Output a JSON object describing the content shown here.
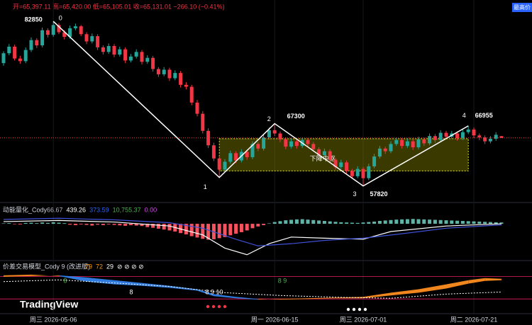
{
  "header": {
    "ohlc_text": "开=65,397.11 高=65,420.00 低=65,105.01 收=65,131.01 −266.10 (−0.41%)",
    "badge": "最高价"
  },
  "watermark": "TradingView",
  "chart_data": [
    {
      "type": "candlestick",
      "up_color": "#26a69a",
      "down_color": "#f23645",
      "ylim": [
        55300,
        86100
      ],
      "xticks": [
        {
          "value": 9,
          "label": "周三 2026-05-06"
        },
        {
          "value": 49,
          "label": "周一 2026-06-15"
        },
        {
          "value": 65,
          "label": "周三 2026-07-01"
        },
        {
          "value": 85,
          "label": "周二 2026-07-21"
        }
      ],
      "ohlc": [
        [
          76500,
          78300,
          76100,
          78000
        ],
        [
          78000,
          79400,
          77700,
          79000
        ],
        [
          79000,
          79300,
          76900,
          77200
        ],
        [
          77200,
          77600,
          76400,
          76800
        ],
        [
          76800,
          78900,
          76500,
          78500
        ],
        [
          78500,
          80400,
          78200,
          80000
        ],
        [
          80000,
          80300,
          78800,
          79200
        ],
        [
          79200,
          81900,
          78900,
          81500
        ],
        [
          81500,
          81800,
          80400,
          80800
        ],
        [
          80800,
          82850,
          80500,
          82300
        ],
        [
          82300,
          82600,
          80900,
          81200
        ],
        [
          81200,
          81500,
          80100,
          80500
        ],
        [
          80500,
          82200,
          80200,
          81800
        ],
        [
          81800,
          82500,
          81500,
          82100
        ],
        [
          82100,
          82300,
          80600,
          80900
        ],
        [
          80900,
          81200,
          79400,
          79800
        ],
        [
          79800,
          81000,
          79500,
          80600
        ],
        [
          80600,
          80900,
          78500,
          78900
        ],
        [
          78900,
          79200,
          77800,
          78200
        ],
        [
          78200,
          79500,
          77900,
          79100
        ],
        [
          79100,
          79400,
          77400,
          77800
        ],
        [
          77800,
          79000,
          77500,
          78600
        ],
        [
          78600,
          78900,
          76500,
          76900
        ],
        [
          76900,
          77900,
          76600,
          77500
        ],
        [
          77500,
          78600,
          77200,
          78200
        ],
        [
          78200,
          78500,
          76300,
          76700
        ],
        [
          76700,
          77700,
          76400,
          77300
        ],
        [
          77300,
          77600,
          75200,
          75600
        ],
        [
          75600,
          75900,
          74400,
          74800
        ],
        [
          74800,
          75900,
          74500,
          75500
        ],
        [
          75500,
          75800,
          73800,
          74200
        ],
        [
          74200,
          75400,
          73900,
          75000
        ],
        [
          75000,
          75300,
          72800,
          73200
        ],
        [
          73200,
          73600,
          72500,
          72900
        ],
        [
          72900,
          73200,
          70100,
          70500
        ],
        [
          70500,
          70900,
          68400,
          68800
        ],
        [
          68800,
          69200,
          65800,
          66200
        ],
        [
          66200,
          66600,
          63600,
          64000
        ],
        [
          64000,
          64400,
          61600,
          62000
        ],
        [
          62000,
          62400,
          59110,
          60300
        ],
        [
          60300,
          61900,
          60000,
          61500
        ],
        [
          61500,
          63200,
          61200,
          62800
        ],
        [
          62800,
          63100,
          61300,
          61700
        ],
        [
          61700,
          63400,
          61400,
          63000
        ],
        [
          63000,
          63300,
          61800,
          62200
        ],
        [
          62200,
          64600,
          61900,
          64200
        ],
        [
          64200,
          64500,
          63100,
          63500
        ],
        [
          63500,
          65600,
          63200,
          65200
        ],
        [
          65200,
          66700,
          64900,
          66300
        ],
        [
          66300,
          67300,
          65400,
          65800
        ],
        [
          65800,
          66100,
          64500,
          64900
        ],
        [
          64900,
          65200,
          63400,
          63800
        ],
        [
          63800,
          65000,
          63500,
          64600
        ],
        [
          64600,
          64900,
          63500,
          63900
        ],
        [
          63900,
          65200,
          63600,
          64800
        ],
        [
          64800,
          65100,
          63800,
          64200
        ],
        [
          64200,
          64500,
          63000,
          63400
        ],
        [
          63400,
          63700,
          62100,
          62500
        ],
        [
          62500,
          63500,
          62200,
          63100
        ],
        [
          63100,
          63400,
          61400,
          61800
        ],
        [
          61800,
          62100,
          60300,
          60700
        ],
        [
          60700,
          61800,
          60400,
          61400
        ],
        [
          61400,
          61700,
          59700,
          60100
        ],
        [
          60100,
          60400,
          58900,
          59300
        ],
        [
          59300,
          60800,
          59000,
          60400
        ],
        [
          60400,
          60700,
          57820,
          59000
        ],
        [
          59000,
          61200,
          58700,
          60800
        ],
        [
          60800,
          62700,
          60500,
          62300
        ],
        [
          62300,
          63900,
          62000,
          63500
        ],
        [
          63500,
          63800,
          62700,
          63100
        ],
        [
          63100,
          64600,
          62800,
          64200
        ],
        [
          64200,
          65200,
          63900,
          64800
        ],
        [
          64800,
          65100,
          63500,
          63900
        ],
        [
          63900,
          65000,
          63600,
          64600
        ],
        [
          64600,
          64900,
          63300,
          63700
        ],
        [
          63700,
          65300,
          63400,
          64900
        ],
        [
          64900,
          65200,
          63900,
          64300
        ],
        [
          64300,
          65800,
          64000,
          65400
        ],
        [
          65400,
          65700,
          64400,
          64800
        ],
        [
          64800,
          66300,
          64500,
          65900
        ],
        [
          65900,
          66200,
          64900,
          65300
        ],
        [
          65300,
          66200,
          65000,
          65800
        ],
        [
          65800,
          66100,
          64700,
          65100
        ],
        [
          65100,
          66400,
          64800,
          66000
        ],
        [
          66000,
          66955,
          65700,
          66400
        ],
        [
          66400,
          66700,
          65100,
          65500
        ],
        [
          65500,
          65800,
          64800,
          65200
        ],
        [
          65200,
          65500,
          64200,
          64600
        ],
        [
          64600,
          65400,
          64300,
          65000
        ],
        [
          65000,
          66000,
          64700,
          65600
        ],
        [
          65397.11,
          65420,
          65105.01,
          65131.01
        ]
      ],
      "zigzag": {
        "color": "#ffffff",
        "x": [
          9,
          39,
          49,
          65,
          84
        ],
        "values": [
          82850,
          59110,
          67300,
          57820,
          66955
        ],
        "point_labels": [
          "0",
          "1",
          "2",
          "3",
          "4"
        ],
        "value_labels": [
          "82850",
          null,
          "67300",
          "57820",
          "66955"
        ]
      },
      "zone": {
        "label": "下降中枢",
        "top": 65000,
        "bottom": 60100,
        "from": 39,
        "to": 84
      }
    },
    {
      "type": "momentum",
      "title": "动能量化_Cody",
      "readouts": [
        {
          "text": "66.67",
          "color": "#b2b5be"
        },
        {
          "text": "439.26",
          "color": "#ffffff"
        },
        {
          "text": "373.59",
          "color": "#2962ff"
        },
        {
          "text": "10,755.37",
          "color": "#4caf50"
        },
        {
          "text": "0.00",
          "color": "#e040fb"
        }
      ],
      "ylim": [
        -1600,
        900
      ],
      "up_color": "#5fb3a7",
      "down_color": "#f7525f",
      "values": [
        20,
        30,
        -20,
        -30,
        40,
        50,
        30,
        60,
        40,
        70,
        50,
        30,
        -40,
        -60,
        -30,
        -50,
        -80,
        -40,
        -60,
        -30,
        -50,
        -70,
        -90,
        -60,
        -80,
        -100,
        -150,
        -180,
        -220,
        -260,
        -300,
        -350,
        -420,
        -480,
        -560,
        -620,
        -680,
        -720,
        -700,
        -650,
        -600,
        -520,
        -450,
        -380,
        -300,
        -200,
        -120,
        -60,
        20,
        80,
        120,
        160,
        180,
        200,
        210,
        190,
        170,
        150,
        130,
        110,
        90,
        70,
        60,
        50,
        40,
        60,
        80,
        100,
        130,
        150,
        170,
        190,
        200,
        210,
        220,
        210,
        200,
        190,
        180,
        170,
        160,
        150,
        140,
        130,
        120,
        110,
        100,
        90,
        80,
        70,
        60
      ],
      "series": [
        {
          "color": "#ffffff",
          "x": [
            0,
            10,
            20,
            30,
            36,
            40,
            44,
            48,
            52,
            58,
            65,
            70,
            80,
            90
          ],
          "values": [
            100,
            150,
            80,
            -100,
            -500,
            -1100,
            -1400,
            -900,
            -600,
            -650,
            -700,
            -350,
            -100,
            0
          ]
        },
        {
          "color": "#3f51d8",
          "x": [
            0,
            10,
            20,
            30,
            36,
            42,
            46,
            52,
            58,
            65,
            72,
            80,
            90
          ],
          "values": [
            200,
            250,
            180,
            50,
            -200,
            -700,
            -1000,
            -900,
            -750,
            -650,
            -450,
            -200,
            -50
          ]
        }
      ]
    },
    {
      "type": "spread",
      "title": "价差交易模型_Cody 9 (改进版)",
      "readouts": [
        {
          "text": "79",
          "color": "#ff9800"
        },
        {
          "text": "72",
          "color": "#ff9800"
        },
        {
          "text": "29",
          "color": "#ffffff"
        },
        {
          "text": "⊘ ⊘ ⊘ ⊘",
          "color": "#ffffff"
        }
      ],
      "ylim": [
        0,
        100
      ],
      "levels": [
        85,
        20
      ],
      "level_color": "#e91e63",
      "up_color": "#f0861e",
      "down_color": "#2f7be0",
      "x": [
        0,
        5,
        10,
        15,
        20,
        25,
        30,
        35,
        38,
        42,
        46,
        50,
        55,
        60,
        65,
        70,
        75,
        80,
        84,
        87,
        90
      ],
      "fast": [
        88,
        90,
        86,
        70,
        62,
        58,
        52,
        44,
        28,
        22,
        18,
        20,
        22,
        24,
        26,
        38,
        48,
        62,
        74,
        80,
        78
      ],
      "slow": [
        84,
        86,
        88,
        82,
        74,
        66,
        58,
        48,
        34,
        26,
        20,
        18,
        20,
        22,
        22,
        30,
        38,
        50,
        64,
        72,
        74
      ],
      "signal": {
        "color": "#ffffff",
        "x": [
          0,
          10,
          20,
          30,
          40,
          50,
          60,
          70,
          80,
          90
        ],
        "values": [
          70,
          75,
          66,
          56,
          38,
          30,
          25,
          22,
          34,
          40
        ]
      },
      "annotations": [
        {
          "text": "8",
          "color": "#4caf50"
        },
        {
          "text": "8",
          "color": "#ffffff"
        },
        {
          "text": "8 9 10",
          "color": "#ffffff"
        },
        {
          "text": "8 9",
          "color": "#4caf50"
        }
      ]
    }
  ]
}
